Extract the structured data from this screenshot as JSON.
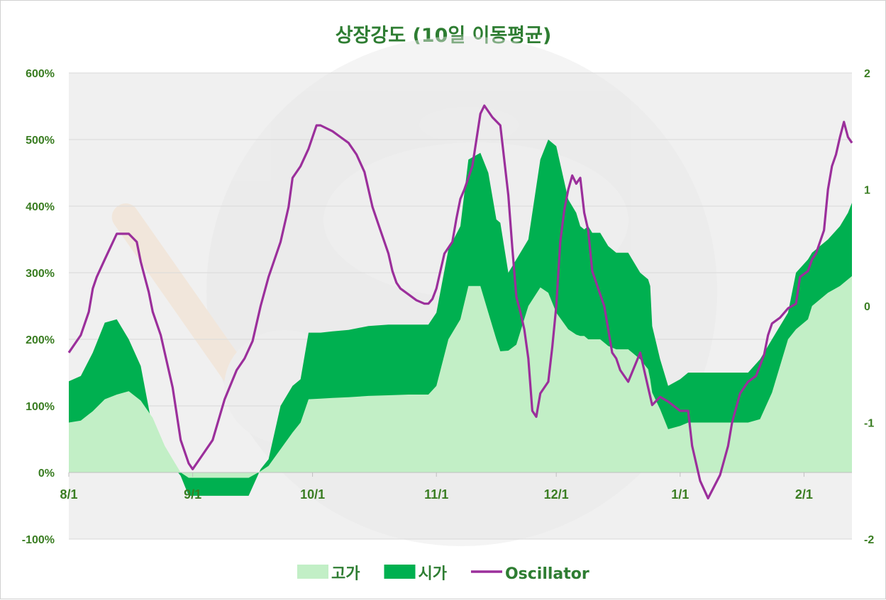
{
  "chart_data": {
    "type": "area",
    "title": "상장강도 (10일 이동평균)",
    "xlabel": "",
    "ylabel": "",
    "x_ticks": [
      "8/1",
      "9/1",
      "10/1",
      "11/1",
      "12/1",
      "1/1",
      "2/1"
    ],
    "x_tick_days": [
      0,
      31,
      61,
      92,
      122,
      153,
      184
    ],
    "x_range": [
      0,
      196
    ],
    "ylim": [
      -100,
      600
    ],
    "y_ticks": [
      -100,
      0,
      100,
      200,
      300,
      400,
      500,
      600
    ],
    "y_tick_labels": [
      "-100%",
      "0%",
      "100%",
      "200%",
      "300%",
      "400%",
      "500%",
      "600%"
    ],
    "y2lim": [
      -2,
      2
    ],
    "y2_ticks": [
      -2,
      -1,
      0,
      1,
      2
    ],
    "y2_tick_labels": [
      "-2",
      "-1",
      "0",
      "1",
      "2"
    ],
    "grid": true,
    "legend_position": "bottom",
    "colors": {
      "high": "#c2efc6",
      "open": "#00b050",
      "oscillator": "#9b2f9b",
      "text": "#3a7d22",
      "grid": "#d9d9d9",
      "plot_bg": "#f0f0f0"
    },
    "series": [
      {
        "name": "고가",
        "type": "area",
        "axis": "left",
        "x": [
          0,
          3,
          6,
          9,
          12,
          15,
          18,
          21,
          24,
          26,
          28,
          30,
          33,
          34,
          36,
          40,
          45,
          48,
          50,
          53,
          56,
          58,
          60,
          63,
          66,
          70,
          75,
          80,
          85,
          90,
          92,
          95,
          98,
          100,
          103,
          105,
          107,
          108,
          110,
          112,
          115,
          118,
          120,
          122,
          125,
          127,
          128,
          129,
          130,
          131,
          133,
          135,
          137,
          140,
          143,
          145,
          145.5,
          146,
          148,
          150,
          153,
          155,
          156,
          158,
          160,
          165,
          170,
          173,
          176,
          180,
          182,
          185,
          186,
          190,
          193,
          195,
          196
        ],
        "values": [
          75,
          78,
          92,
          110,
          117,
          122,
          108,
          82,
          40,
          20,
          0,
          -8,
          -8,
          -8,
          -8,
          -8,
          -8,
          2,
          10,
          35,
          60,
          75,
          110,
          111,
          112,
          113,
          115,
          116,
          117,
          117,
          130,
          200,
          230,
          280,
          280,
          240,
          200,
          182,
          183,
          192,
          250,
          278,
          270,
          240,
          215,
          207,
          205,
          205,
          200,
          200,
          200,
          190,
          185,
          185,
          170,
          155,
          140,
          120,
          95,
          65,
          70,
          75,
          75,
          75,
          75,
          75,
          75,
          80,
          120,
          200,
          215,
          230,
          250,
          270,
          280,
          290,
          295
        ]
      },
      {
        "name": "시가",
        "type": "area",
        "axis": "left",
        "x": [
          0,
          3,
          6,
          9,
          12,
          15,
          18,
          21,
          24,
          26,
          28,
          30,
          33,
          34,
          36,
          40,
          45,
          48,
          50,
          53,
          56,
          58,
          60,
          63,
          66,
          70,
          75,
          80,
          85,
          90,
          92,
          95,
          98,
          100,
          103,
          105,
          107,
          108,
          110,
          112,
          115,
          118,
          120,
          122,
          125,
          127,
          128,
          129,
          130,
          131,
          133,
          135,
          137,
          140,
          143,
          145,
          145.5,
          146,
          148,
          150,
          153,
          155,
          156,
          158,
          160,
          165,
          170,
          173,
          176,
          180,
          182,
          185,
          186,
          190,
          193,
          195,
          196
        ],
        "values": [
          137,
          145,
          180,
          225,
          230,
          200,
          160,
          65,
          35,
          10,
          -5,
          -35,
          -35,
          -35,
          -35,
          -35,
          -35,
          5,
          20,
          100,
          130,
          140,
          210,
          210,
          212,
          214,
          220,
          222,
          222,
          222,
          240,
          335,
          370,
          470,
          480,
          450,
          380,
          375,
          300,
          320,
          350,
          470,
          500,
          490,
          410,
          390,
          370,
          365,
          370,
          360,
          360,
          340,
          330,
          330,
          300,
          290,
          280,
          220,
          170,
          130,
          140,
          150,
          150,
          150,
          150,
          150,
          150,
          170,
          200,
          240,
          300,
          320,
          330,
          350,
          370,
          390,
          405
        ]
      },
      {
        "name": "Oscillator",
        "type": "line",
        "axis": "right",
        "x": [
          0,
          3,
          5,
          6,
          7,
          9,
          12,
          13,
          15,
          17,
          18,
          19,
          20,
          21,
          23,
          24,
          25,
          26,
          28,
          30,
          31,
          33,
          36,
          39,
          42,
          44,
          46,
          48,
          50,
          53,
          55,
          56,
          58,
          60,
          62,
          63,
          66,
          68,
          70,
          72,
          74,
          76,
          78,
          80,
          81,
          82,
          83,
          85,
          87,
          89,
          90,
          91,
          92,
          93,
          94,
          96,
          97,
          98,
          99,
          100,
          101,
          103,
          104,
          106,
          108,
          110,
          111,
          112,
          113,
          114,
          115,
          116,
          117,
          118,
          119,
          120,
          121,
          122,
          123,
          124,
          125,
          126,
          127,
          128,
          129,
          130,
          131,
          132,
          133,
          134,
          135,
          136,
          137,
          138,
          140,
          143,
          145,
          146,
          148,
          150,
          153,
          155,
          156,
          158,
          160,
          163,
          165,
          166,
          168,
          170,
          172,
          174,
          175,
          176,
          178,
          180,
          182,
          183,
          185,
          186,
          187,
          189,
          190,
          191,
          192,
          193,
          194,
          195,
          196
        ],
        "values": [
          -0.4,
          -0.25,
          -0.05,
          0.15,
          0.25,
          0.4,
          0.62,
          0.62,
          0.62,
          0.55,
          0.38,
          0.25,
          0.12,
          -0.05,
          -0.25,
          -0.4,
          -0.55,
          -0.7,
          -1.15,
          -1.35,
          -1.4,
          -1.3,
          -1.15,
          -0.8,
          -0.55,
          -0.45,
          -0.3,
          0.0,
          0.25,
          0.55,
          0.85,
          1.1,
          1.2,
          1.35,
          1.55,
          1.55,
          1.5,
          1.45,
          1.4,
          1.3,
          1.15,
          0.85,
          0.65,
          0.45,
          0.3,
          0.2,
          0.15,
          0.1,
          0.05,
          0.02,
          0.02,
          0.06,
          0.15,
          0.3,
          0.45,
          0.55,
          0.75,
          0.92,
          1.0,
          1.1,
          1.2,
          1.65,
          1.72,
          1.62,
          1.55,
          0.95,
          0.5,
          0.08,
          -0.05,
          -0.2,
          -0.45,
          -0.9,
          -0.95,
          -0.75,
          -0.7,
          -0.65,
          -0.35,
          0.0,
          0.55,
          0.82,
          1.0,
          1.12,
          1.05,
          1.1,
          0.8,
          0.65,
          0.3,
          0.2,
          0.1,
          0.0,
          -0.2,
          -0.4,
          -0.45,
          -0.55,
          -0.65,
          -0.4,
          -0.7,
          -0.85,
          -0.78,
          -0.82,
          -0.9,
          -0.9,
          -1.2,
          -1.5,
          -1.65,
          -1.45,
          -1.2,
          -1.0,
          -0.75,
          -0.65,
          -0.6,
          -0.42,
          -0.25,
          -0.15,
          -0.1,
          -0.02,
          0.02,
          0.25,
          0.3,
          0.4,
          0.45,
          0.65,
          1.0,
          1.2,
          1.3,
          1.45,
          1.58,
          1.45,
          1.4
        ]
      }
    ]
  }
}
